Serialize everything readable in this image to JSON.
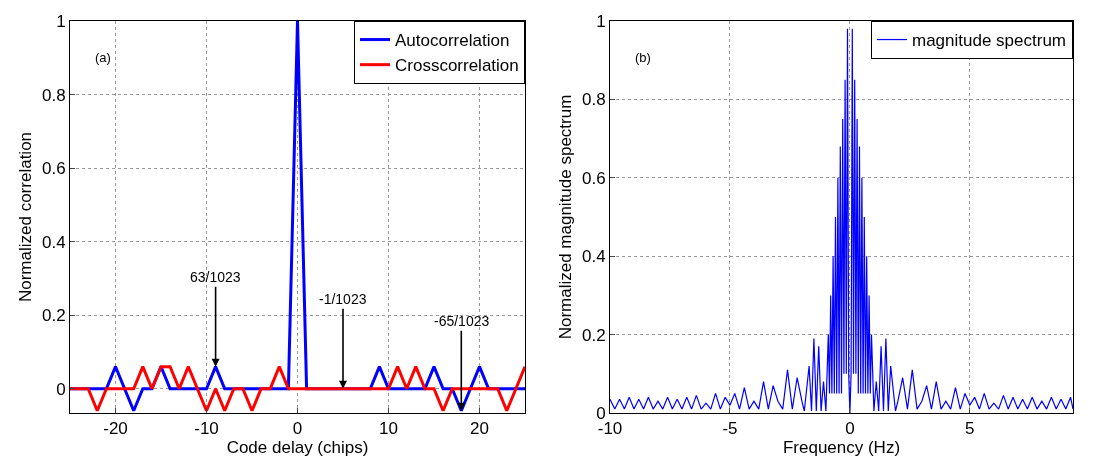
{
  "chart_data": [
    {
      "type": "line",
      "xlabel": "Code delay (chips)",
      "ylabel": "Normalized correlation",
      "x": [
        -25,
        -24,
        -23,
        -22,
        -21,
        -20,
        -19,
        -18,
        -17,
        -16,
        -15,
        -14,
        -13,
        -12,
        -11,
        -10,
        -9,
        -8,
        -7,
        -6,
        -5,
        -4,
        -3,
        -2,
        -1,
        0,
        1,
        2,
        3,
        4,
        5,
        6,
        7,
        8,
        9,
        10,
        11,
        12,
        13,
        14,
        15,
        16,
        17,
        18,
        19,
        20,
        21,
        22,
        23,
        24,
        25
      ],
      "series": [
        {
          "name": "Autocorrelation",
          "color": "#0000ff",
          "values": [
            0,
            0,
            0,
            0,
            0,
            0.06,
            0,
            -0.06,
            0,
            0,
            0.06,
            0,
            0,
            0,
            0,
            0,
            0.06,
            0,
            0,
            0,
            0,
            0,
            0,
            0,
            0,
            1,
            0,
            0,
            0,
            0,
            0,
            0,
            0,
            0,
            0.06,
            0,
            0,
            0,
            0,
            0,
            0.06,
            0,
            0,
            -0.06,
            0,
            0.06,
            0,
            0,
            0,
            0,
            0
          ]
        },
        {
          "name": "Crosscorrelation",
          "color": "#ff0000",
          "values": [
            0,
            0,
            0,
            -0.06,
            0,
            0,
            0,
            0,
            0.06,
            0,
            0.06,
            0.06,
            0,
            0.06,
            0,
            -0.06,
            0,
            -0.06,
            0,
            0,
            -0.06,
            0,
            0,
            0.06,
            0,
            0,
            0,
            0,
            0,
            0,
            0,
            0,
            0,
            0,
            0,
            0,
            0.06,
            0,
            0.06,
            0,
            0,
            -0.06,
            0,
            0,
            0,
            0,
            0,
            0,
            -0.06,
            0,
            0.06
          ]
        }
      ],
      "xlim": [
        -25,
        25
      ],
      "xticks": [
        -20,
        -10,
        0,
        10,
        20
      ],
      "ylim": [
        -0.066,
        1
      ],
      "yticks": [
        0,
        0.2,
        0.4,
        0.6,
        0.8,
        1
      ],
      "grid": true,
      "legend": "top right",
      "line_style": "solid",
      "annotations": [
        "(a)",
        {
          "text": "63/1023",
          "x": -9,
          "y": 0.06
        },
        {
          "text": "-1/1023",
          "x": 5,
          "y": 0
        },
        {
          "text": "-65/1023",
          "x": 18,
          "y": -0.06
        }
      ]
    },
    {
      "type": "line",
      "xlabel": "Frequency (Hz)",
      "ylabel": "Normalized magnitude spectrum",
      "x": [
        -10,
        -9.8,
        -9.6,
        -9.4,
        -9.2,
        -9,
        -8.8,
        -8.6,
        -8.4,
        -8.2,
        -8,
        -7.8,
        -7.6,
        -7.4,
        -7.2,
        -7,
        -6.8,
        -6.6,
        -6.4,
        -6.2,
        -6,
        -5.8,
        -5.6,
        -5.4,
        -5.2,
        -5,
        -4.8,
        -4.6,
        -4.4,
        -4.2,
        -4,
        -3.8,
        -3.6,
        -3.4,
        -3.2,
        -3,
        -2.8,
        -2.6,
        -2.4,
        -2.2,
        -2,
        -1.9,
        -1.7,
        -1.6,
        -1.5,
        -1.4,
        -1.3,
        -1.2,
        -1.1,
        -1,
        -0.9,
        -0.85,
        -0.8,
        -0.75,
        -0.7,
        -0.65,
        -0.6,
        -0.55,
        -0.5,
        -0.45,
        -0.4,
        -0.35,
        -0.3,
        -0.25,
        -0.2,
        -0.15,
        -0.1,
        -0.05,
        0,
        0.05,
        0.1,
        0.15,
        0.2,
        0.25,
        0.3,
        0.35,
        0.4,
        0.45,
        0.5,
        0.55,
        0.6,
        0.65,
        0.7,
        0.75,
        0.8,
        0.85,
        0.9,
        1,
        1.1,
        1.2,
        1.3,
        1.4,
        1.5,
        1.6,
        1.7,
        1.9,
        2,
        2.2,
        2.4,
        2.6,
        2.8,
        3,
        3.2,
        3.4,
        3.6,
        3.8,
        4,
        4.2,
        4.4,
        4.6,
        4.8,
        5,
        5.2,
        5.4,
        5.6,
        5.8,
        6,
        6.2,
        6.4,
        6.6,
        6.8,
        7,
        7.2,
        7.4,
        7.6,
        7.8,
        8,
        8.2,
        8.4,
        8.6,
        8.8,
        9,
        9.2,
        9.3
      ],
      "series": [
        {
          "name": "magnitude spectrum",
          "color": "#0000ff",
          "values": [
            0.035,
            0.01,
            0.035,
            0.01,
            0.04,
            0.01,
            0.035,
            0.01,
            0.04,
            0.01,
            0.03,
            0.01,
            0.04,
            0.01,
            0.035,
            0.01,
            0.04,
            0.01,
            0.045,
            0.01,
            0.025,
            0.01,
            0.05,
            0.01,
            0.04,
            0.02,
            0.05,
            0.01,
            0.065,
            0.01,
            0.03,
            0.01,
            0.08,
            0.01,
            0.07,
            0.03,
            0.01,
            0.11,
            0.01,
            0.09,
            0.03,
            0.005,
            0.12,
            0.005,
            0.19,
            0.005,
            0.17,
            0.005,
            0.08,
            0.005,
            0.2,
            0.05,
            0.3,
            0.05,
            0.4,
            0.05,
            0.5,
            0.05,
            0.6,
            0.05,
            0.68,
            0.05,
            0.75,
            0.1,
            0.85,
            0.1,
            0.98,
            0.1,
            0,
            0.1,
            0.98,
            0.1,
            0.85,
            0.1,
            0.75,
            0.05,
            0.68,
            0.05,
            0.6,
            0.05,
            0.5,
            0.05,
            0.4,
            0.05,
            0.3,
            0.05,
            0.2,
            0.005,
            0.08,
            0.005,
            0.17,
            0.005,
            0.19,
            0.005,
            0.12,
            0.005,
            0.03,
            0.09,
            0.01,
            0.11,
            0.01,
            0.03,
            0.07,
            0.01,
            0.08,
            0.01,
            0.03,
            0.01,
            0.065,
            0.01,
            0.05,
            0.02,
            0.04,
            0.01,
            0.05,
            0.01,
            0.025,
            0.01,
            0.045,
            0.01,
            0.04,
            0.01,
            0.035,
            0.01,
            0.04,
            0.01,
            0.03,
            0.01,
            0.04,
            0.01,
            0.035,
            0.01,
            0.04,
            0.01
          ]
        }
      ],
      "xlim": [
        -10,
        9.3
      ],
      "xticks": [
        -10,
        -5,
        0,
        5
      ],
      "ylim": [
        0,
        1
      ],
      "yticks": [
        0,
        0.2,
        0.4,
        0.6,
        0.8,
        1
      ],
      "grid": true,
      "legend": "top right",
      "line_style": "solid",
      "annotations": [
        "(b)"
      ]
    }
  ]
}
